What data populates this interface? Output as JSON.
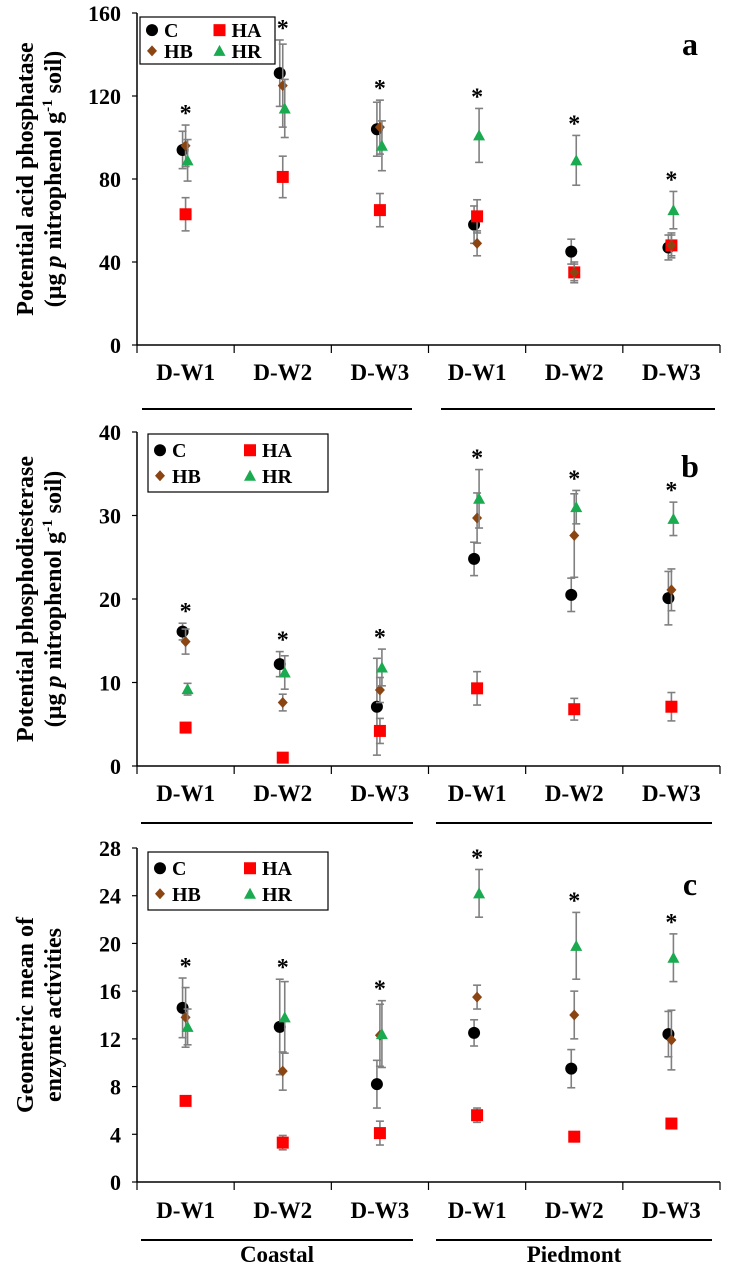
{
  "colors": {
    "C": "#000000",
    "HA": "#ff0000",
    "HB": "#8b4513",
    "HR": "#1aaa50",
    "error_bar": "#808080",
    "axis": "#000000"
  },
  "group_labels": [
    "Coastal",
    "Piedmont"
  ],
  "chart_data": [
    {
      "type": "scatter",
      "panel_label": "a",
      "ylabel_line1": "Potential acid phosphatase",
      "ylabel_line2_prefix": "(µg ",
      "ylabel_line2_italic": "p",
      "ylabel_line2_mid": " nitrophenol g",
      "ylabel_line2_sup": "-1",
      "ylabel_line2_suffix": " soil)",
      "ylim": [
        0,
        160
      ],
      "yticks": [
        "0",
        "40",
        "80",
        "120",
        "160"
      ],
      "categories": [
        "D-W1",
        "D-W2",
        "D-W3",
        "D-W1",
        "D-W2",
        "D-W3"
      ],
      "significance": [
        "*",
        "*",
        "*",
        "*",
        "*",
        "*"
      ],
      "legend": [
        "C",
        "HA",
        "HB",
        "HR"
      ],
      "series": [
        {
          "name": "C",
          "marker": "circle",
          "values": [
            94,
            131,
            104,
            58,
            45,
            47
          ],
          "errors": [
            9,
            16,
            13,
            9,
            6,
            6
          ]
        },
        {
          "name": "HA",
          "marker": "square",
          "values": [
            63,
            81,
            65,
            62,
            35,
            48
          ],
          "errors": [
            8,
            10,
            8,
            8,
            4,
            5
          ]
        },
        {
          "name": "HB",
          "marker": "diamond",
          "values": [
            96,
            125,
            105,
            49,
            35,
            48
          ],
          "errors": [
            10,
            20,
            13,
            6,
            5,
            6
          ]
        },
        {
          "name": "HR",
          "marker": "triangle",
          "values": [
            89,
            114,
            96,
            101,
            89,
            65
          ],
          "errors": [
            10,
            14,
            12,
            13,
            12,
            9
          ]
        }
      ]
    },
    {
      "type": "scatter",
      "panel_label": "b",
      "ylabel_line1": "Potential phosphodiesterase",
      "ylabel_line2_prefix": "(µg ",
      "ylabel_line2_italic": "p",
      "ylabel_line2_mid": " nitrophenol g",
      "ylabel_line2_sup": "-1",
      "ylabel_line2_suffix": " soil)",
      "ylim": [
        0,
        40
      ],
      "yticks": [
        "0",
        "10",
        "20",
        "30",
        "40"
      ],
      "categories": [
        "D-W1",
        "D-W2",
        "D-W3",
        "D-W1",
        "D-W2",
        "D-W3"
      ],
      "significance": [
        "*",
        "*",
        "*",
        "*",
        "*",
        "*"
      ],
      "legend": [
        "C",
        "HA",
        "HB",
        "HR"
      ],
      "series": [
        {
          "name": "C",
          "marker": "circle",
          "values": [
            16.1,
            12.2,
            7.1,
            24.8,
            20.5,
            20.1
          ],
          "errors": [
            1.0,
            1.5,
            5.8,
            2.0,
            2.0,
            3.2
          ]
        },
        {
          "name": "HA",
          "marker": "square",
          "values": [
            4.6,
            1.0,
            4.2,
            9.3,
            6.8,
            7.1
          ],
          "errors": [
            0.5,
            0.3,
            1.5,
            2.0,
            1.3,
            1.7
          ]
        },
        {
          "name": "HB",
          "marker": "diamond",
          "values": [
            14.9,
            7.6,
            9.1,
            29.7,
            27.6,
            21.1
          ],
          "errors": [
            1.5,
            1.0,
            1.5,
            3.0,
            5.0,
            2.5
          ]
        },
        {
          "name": "HR",
          "marker": "triangle",
          "values": [
            9.2,
            11.2,
            11.8,
            32.0,
            31.0,
            29.6
          ],
          "errors": [
            0.7,
            2.0,
            2.2,
            3.5,
            2.0,
            2.0
          ]
        }
      ]
    },
    {
      "type": "scatter",
      "panel_label": "c",
      "ylabel_line1": "Geometric mean of",
      "ylabel_line2_prefix": "enzyme activities",
      "ylabel_line2_italic": "",
      "ylabel_line2_mid": "",
      "ylabel_line2_sup": "",
      "ylabel_line2_suffix": "",
      "ylim": [
        0,
        28
      ],
      "yticks": [
        "0",
        "4",
        "8",
        "12",
        "16",
        "20",
        "24",
        "28"
      ],
      "categories": [
        "D-W1",
        "D-W2",
        "D-W3",
        "D-W1",
        "D-W2",
        "D-W3"
      ],
      "significance": [
        "*",
        "*",
        "*",
        "*",
        "*",
        "*"
      ],
      "legend": [
        "C",
        "HA",
        "HB",
        "HR"
      ],
      "series": [
        {
          "name": "C",
          "marker": "circle",
          "values": [
            14.6,
            13.0,
            8.2,
            12.5,
            9.5,
            12.4
          ],
          "errors": [
            2.5,
            4.0,
            2.0,
            1.1,
            1.6,
            1.9
          ]
        },
        {
          "name": "HA",
          "marker": "square",
          "values": [
            6.8,
            3.3,
            4.1,
            5.6,
            3.8,
            4.9
          ],
          "errors": [
            0.3,
            0.6,
            1.0,
            0.6,
            0.3,
            0.3
          ]
        },
        {
          "name": "HB",
          "marker": "diamond",
          "values": [
            13.8,
            9.3,
            12.3,
            15.5,
            14.0,
            11.9
          ],
          "errors": [
            2.5,
            1.6,
            2.6,
            1.0,
            2.0,
            2.5
          ]
        },
        {
          "name": "HR",
          "marker": "triangle",
          "values": [
            13.0,
            13.8,
            12.4,
            24.2,
            19.8,
            18.8
          ],
          "errors": [
            1.5,
            3.0,
            2.8,
            2.0,
            2.8,
            2.0
          ]
        }
      ]
    }
  ]
}
